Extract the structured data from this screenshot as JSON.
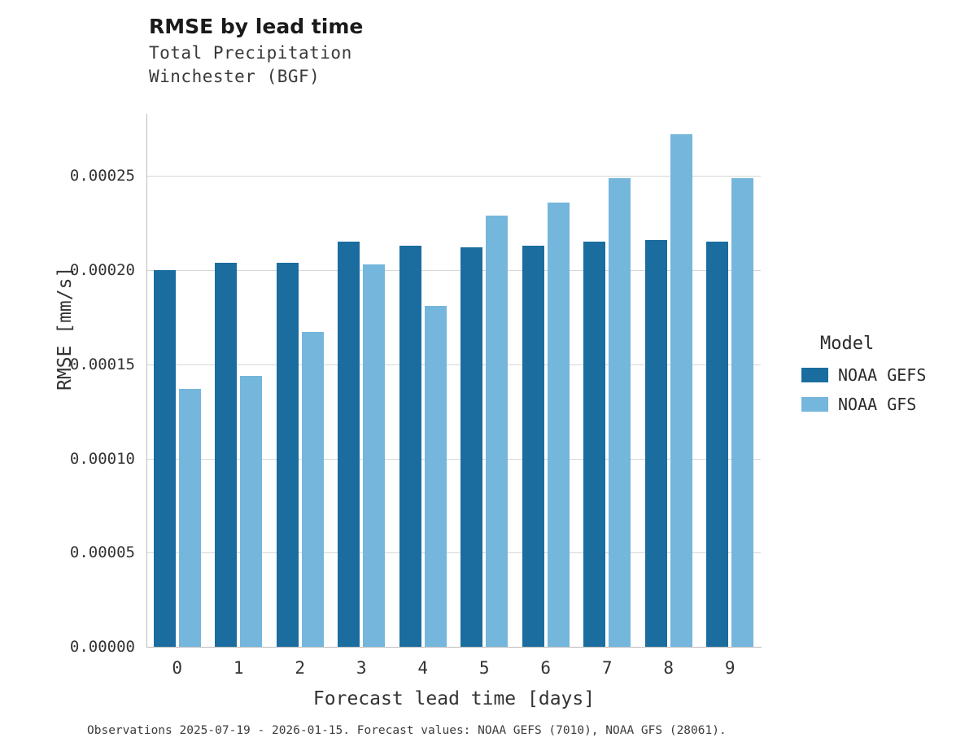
{
  "title": "RMSE by lead time",
  "subtitle1": "Total Precipitation",
  "subtitle2": "Winchester (BGF)",
  "caption": "Observations 2025-07-19 - 2026-01-15. Forecast values: NOAA GEFS (7010), NOAA GFS (28061).",
  "legend": {
    "title": "Model",
    "entries": [
      {
        "label": "NOAA GEFS",
        "color": "#1a6d9e"
      },
      {
        "label": "NOAA GFS",
        "color": "#74b6dc"
      }
    ]
  },
  "chart_data": {
    "type": "bar",
    "title": "RMSE by lead time",
    "subtitle": "Total Precipitation — Winchester (BGF)",
    "xlabel": "Forecast lead time [days]",
    "ylabel": "RMSE [mm/s]",
    "categories": [
      "0",
      "1",
      "2",
      "3",
      "4",
      "5",
      "6",
      "7",
      "8",
      "9"
    ],
    "series": [
      {
        "name": "NOAA GEFS",
        "color": "#1a6d9e",
        "values": [
          0.0002,
          0.000204,
          0.000204,
          0.000215,
          0.000213,
          0.000212,
          0.000213,
          0.000215,
          0.000216,
          0.000215
        ]
      },
      {
        "name": "NOAA GFS",
        "color": "#74b6dc",
        "values": [
          0.000137,
          0.000144,
          0.000167,
          0.000203,
          0.000181,
          0.000229,
          0.000236,
          0.000249,
          0.000272,
          0.000249
        ]
      }
    ],
    "ylim": [
      0,
      0.000283
    ],
    "yticks": [
      0.0,
      5e-05,
      0.0001,
      0.00015,
      0.0002,
      0.00025
    ],
    "ytick_labels": [
      "0.00000",
      "0.00005",
      "0.00010",
      "0.00015",
      "0.00020",
      "0.00025"
    ],
    "grid": "horizontal",
    "legend_position": "right"
  }
}
